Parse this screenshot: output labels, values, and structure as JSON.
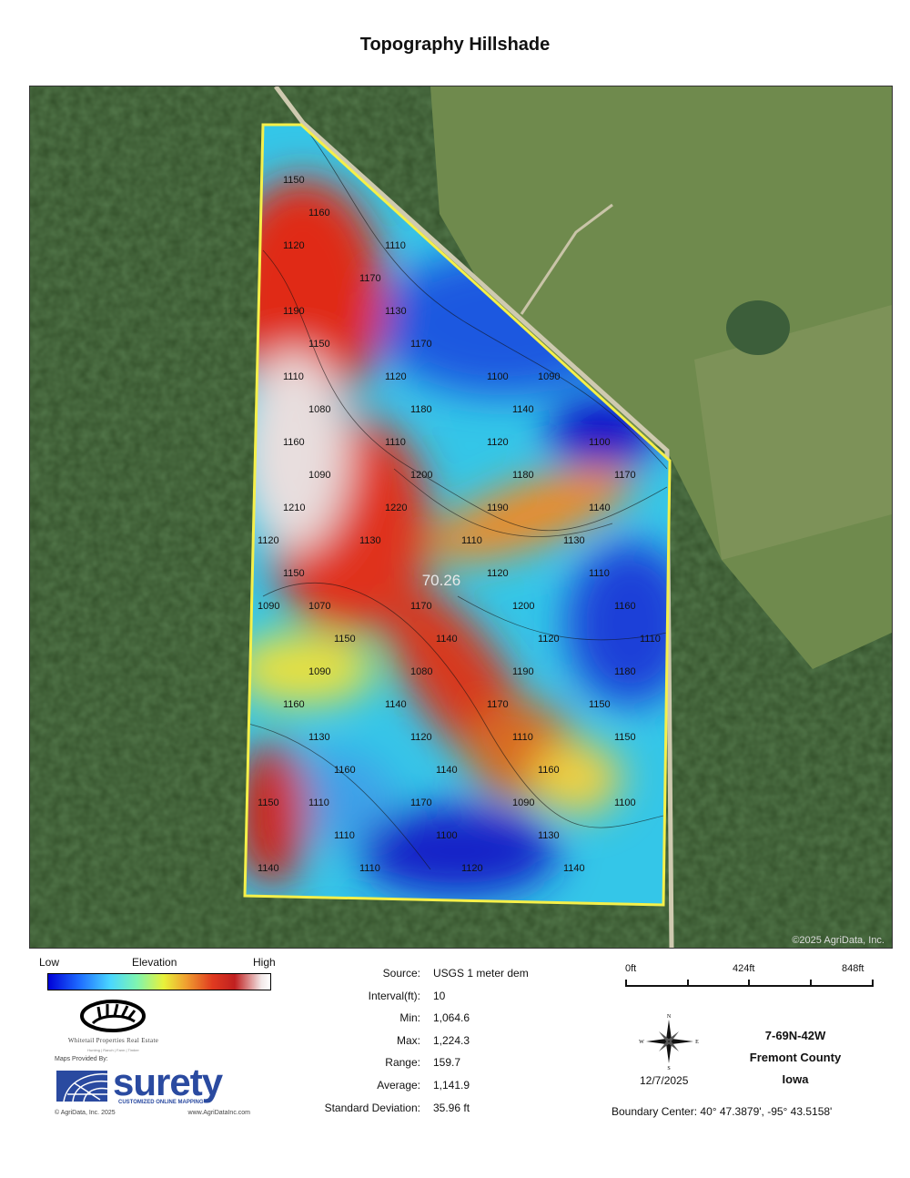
{
  "title": "Topography Hillshade",
  "map": {
    "boundary_color": "#f5f04a",
    "acreage_label": "70.26",
    "copyright": "©2025 AgriData, Inc.",
    "contour_labels": [
      "1150",
      "1160",
      "1120",
      "1110",
      "1170",
      "1190",
      "1130",
      "1150",
      "1170",
      "1110",
      "1120",
      "1100",
      "1090",
      "1080",
      "1180",
      "1140",
      "1160",
      "1110",
      "1120",
      "1100",
      "1090",
      "1200",
      "1180",
      "1170",
      "1210",
      "1220",
      "1190",
      "1140",
      "1120",
      "1130",
      "1110",
      "1130",
      "1150",
      "1120",
      "1110",
      "1090",
      "1070",
      "1170",
      "1200",
      "1160",
      "1150",
      "1140",
      "1120",
      "1110",
      "1090",
      "1080",
      "1190",
      "1180",
      "1160",
      "1140",
      "1170",
      "1150",
      "1130",
      "1120",
      "1110",
      "1150",
      "1160",
      "1140",
      "1160",
      "1150",
      "1110",
      "1170",
      "1090",
      "1100",
      "1110",
      "1100",
      "1130",
      "1140",
      "1110",
      "1120",
      "1140"
    ]
  },
  "legend": {
    "low": "Low",
    "title": "Elevation",
    "high": "High"
  },
  "branding": {
    "company": "Whitetail Properties Real Estate",
    "tagline": "Hunting | Ranch | Farm | Timber",
    "maps_provided_by": "Maps Provided By:",
    "surety": "surety",
    "surety_sub": "CUSTOMIZED ONLINE MAPPING",
    "agridata_copyright": "© AgriData, Inc. 2025",
    "agridata_url": "www.AgriDataInc.com"
  },
  "stats": [
    {
      "label": "Source:",
      "value": "USGS 1 meter dem"
    },
    {
      "label": "Interval(ft):",
      "value": "10"
    },
    {
      "label": "Min:",
      "value": "1,064.6"
    },
    {
      "label": "Max:",
      "value": "1,224.3"
    },
    {
      "label": "Range:",
      "value": "159.7"
    },
    {
      "label": "Average:",
      "value": "1,141.9"
    },
    {
      "label": "Standard Deviation:",
      "value": "35.96 ft"
    }
  ],
  "scale": {
    "labels": [
      "0ft",
      "424ft",
      "848ft"
    ]
  },
  "compass": {
    "n": "N",
    "s": "S",
    "e": "E",
    "w": "W"
  },
  "date": "12/7/2025",
  "location": {
    "section": "7-69N-42W",
    "county": "Fremont County",
    "state": "Iowa"
  },
  "boundary_center": "Boundary Center: 40° 47.3879',  -95° 43.5158'"
}
